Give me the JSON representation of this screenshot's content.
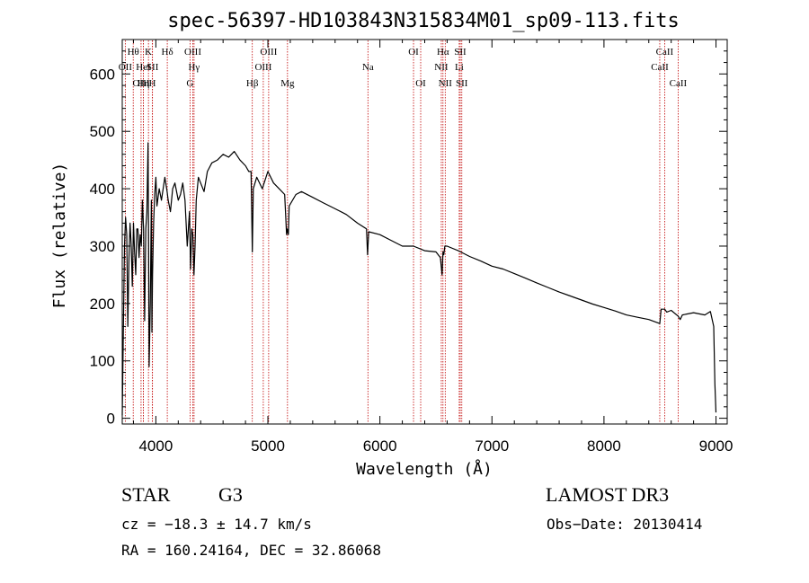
{
  "chart_data": {
    "type": "line",
    "title": "spec-56397-HD103843N315834M01_sp09-113.fits",
    "xlabel": "Wavelength (Å)",
    "ylabel": "Flux (relative)",
    "xlim": [
      3700,
      9100
    ],
    "ylim": [
      -10,
      660
    ],
    "xticks": [
      4000,
      5000,
      6000,
      7000,
      8000,
      9000
    ],
    "yticks": [
      0,
      100,
      200,
      300,
      400,
      500,
      600
    ],
    "grid": false,
    "series": [
      {
        "name": "spectrum",
        "x": [
          3700,
          3710,
          3720,
          3730,
          3740,
          3750,
          3760,
          3770,
          3780,
          3790,
          3800,
          3810,
          3820,
          3830,
          3840,
          3850,
          3860,
          3870,
          3880,
          3890,
          3900,
          3910,
          3920,
          3930,
          3935,
          3940,
          3950,
          3960,
          3965,
          3970,
          3980,
          3990,
          4000,
          4010,
          4030,
          4050,
          4080,
          4100,
          4110,
          4130,
          4150,
          4170,
          4200,
          4220,
          4240,
          4260,
          4280,
          4300,
          4310,
          4320,
          4330,
          4340,
          4350,
          4360,
          4380,
          4400,
          4430,
          4460,
          4500,
          4550,
          4600,
          4650,
          4700,
          4750,
          4800,
          4830,
          4850,
          4861,
          4870,
          4900,
          4950,
          5000,
          5050,
          5100,
          5150,
          5167,
          5173,
          5183,
          5190,
          5250,
          5300,
          5400,
          5500,
          5600,
          5700,
          5800,
          5880,
          5890,
          5896,
          5900,
          6000,
          6100,
          6200,
          6300,
          6400,
          6500,
          6540,
          6555,
          6563,
          6570,
          6580,
          6600,
          6700,
          6800,
          6900,
          7000,
          7100,
          7200,
          7300,
          7400,
          7500,
          7600,
          7700,
          7800,
          7900,
          8000,
          8100,
          8200,
          8300,
          8400,
          8498,
          8510,
          8542,
          8560,
          8600,
          8662,
          8680,
          8700,
          8800,
          8900,
          8950,
          8980,
          8990,
          9000
        ],
        "values": [
          5,
          150,
          300,
          350,
          320,
          160,
          280,
          340,
          300,
          230,
          340,
          290,
          250,
          330,
          330,
          280,
          320,
          300,
          380,
          330,
          170,
          330,
          360,
          480,
          300,
          90,
          200,
          380,
          150,
          250,
          340,
          390,
          420,
          370,
          400,
          380,
          420,
          395,
          380,
          360,
          400,
          410,
          380,
          390,
          410,
          380,
          300,
          360,
          260,
          330,
          320,
          250,
          300,
          380,
          420,
          410,
          395,
          430,
          445,
          450,
          460,
          455,
          465,
          450,
          440,
          430,
          430,
          290,
          400,
          420,
          400,
          430,
          410,
          400,
          390,
          320,
          330,
          320,
          370,
          390,
          395,
          385,
          375,
          365,
          355,
          340,
          330,
          285,
          310,
          325,
          320,
          310,
          300,
          300,
          292,
          290,
          280,
          250,
          290,
          285,
          300,
          300,
          292,
          282,
          274,
          265,
          260,
          252,
          244,
          236,
          228,
          220,
          213,
          206,
          199,
          193,
          187,
          180,
          176,
          172,
          165,
          190,
          190,
          185,
          188,
          178,
          172,
          180,
          184,
          180,
          186,
          160,
          60,
          10
        ]
      }
    ],
    "annotations": [
      {
        "label": "OII",
        "x": 3727,
        "row": 2
      },
      {
        "label": "Hθ",
        "x": 3798,
        "row": 1
      },
      {
        "label": "OIII",
        "x": 3868,
        "row": 3
      },
      {
        "label": "HeI",
        "x": 3889,
        "row": 2
      },
      {
        "label": "Hη",
        "x": 3889,
        "row": 3
      },
      {
        "label": "K",
        "x": 3934,
        "row": 1
      },
      {
        "label": "SII",
        "x": 3970,
        "row": 2
      },
      {
        "label": "H",
        "x": 3969,
        "row": 3
      },
      {
        "label": "Hδ",
        "x": 4102,
        "row": 1
      },
      {
        "label": "G",
        "x": 4305,
        "row": 3
      },
      {
        "label": "OIII",
        "x": 4330,
        "row": 1
      },
      {
        "label": "Hγ",
        "x": 4341,
        "row": 2
      },
      {
        "label": "Hβ",
        "x": 4861,
        "row": 3
      },
      {
        "label": "OIII",
        "x": 5007,
        "row": 1
      },
      {
        "label": "OIII",
        "x": 4959,
        "row": 2
      },
      {
        "label": "Mg",
        "x": 5175,
        "row": 3
      },
      {
        "label": "Na",
        "x": 5893,
        "row": 2
      },
      {
        "label": "OI",
        "x": 6300,
        "row": 1
      },
      {
        "label": "OI",
        "x": 6364,
        "row": 3
      },
      {
        "label": "Hα",
        "x": 6563,
        "row": 1
      },
      {
        "label": "NII",
        "x": 6548,
        "row": 2
      },
      {
        "label": "NII",
        "x": 6583,
        "row": 3
      },
      {
        "label": "SII",
        "x": 6717,
        "row": 1
      },
      {
        "label": "Li",
        "x": 6708,
        "row": 2
      },
      {
        "label": "SII",
        "x": 6731,
        "row": 3
      },
      {
        "label": "CaII",
        "x": 8542,
        "row": 1
      },
      {
        "label": "CaII",
        "x": 8498,
        "row": 2
      },
      {
        "label": "CaII",
        "x": 8662,
        "row": 3
      }
    ]
  },
  "info": {
    "class": "STAR",
    "subclass": "G3",
    "survey": "LAMOST DR3",
    "cz": "cz = −18.3 ± 14.7 km/s",
    "obs_date": "Obs−Date: 20130414",
    "coords": "RA = 160.24164, DEC =  32.86068"
  },
  "colors": {
    "line_marker": "#c00000",
    "spectrum": "#000000"
  }
}
